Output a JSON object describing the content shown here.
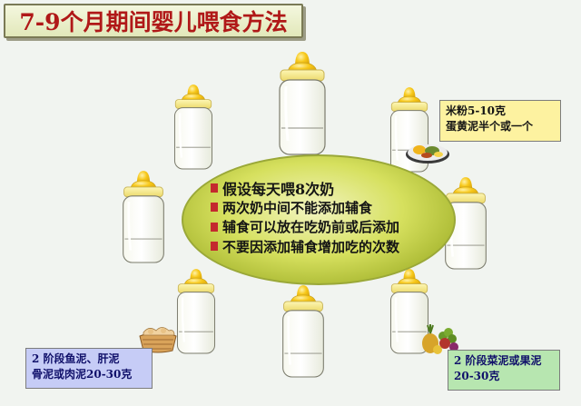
{
  "title": "7-9个月期间婴儿喂食方法",
  "center_bullets": [
    "假设每天喂8次奶",
    "两次奶中间不能添加辅食",
    "辅食可以放在吃奶前或后添加",
    "不要因添加辅食增加吃的次数"
  ],
  "notes": {
    "top_right": [
      "米粉5-10克",
      "蛋黄泥半个或一个"
    ],
    "bottom_left": [
      "2 阶段鱼泥、肝泥",
      "骨泥或肉泥20-30克"
    ],
    "bottom_right": [
      "2 阶段菜泥或果泥",
      "20-30克"
    ]
  },
  "icons": {
    "bottle": "baby-bottle-icon",
    "bullet": "red-square-bullet-icon",
    "egg_plate": "egg-yolk-plate-icon",
    "bread_basket": "bread-basket-icon",
    "fruit": "fruit-pile-icon"
  },
  "colors": {
    "title_text": "#b01818",
    "bullet": "#c4292e",
    "ellipse": "#c8d44a",
    "nipple": "#f4c216",
    "note_top_right": "#fdf2a0",
    "note_bottom_left": "#c6ccf6",
    "note_bottom_right": "#b7e6b0"
  }
}
